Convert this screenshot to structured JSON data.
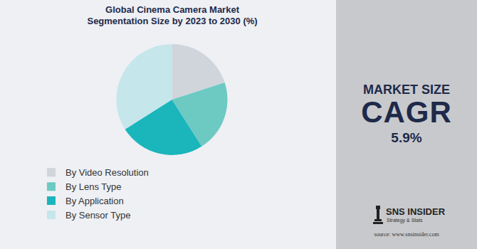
{
  "chart_data": {
    "type": "pie",
    "title": "Global Cinema Camera Market\nSegmentation Size by 2023 to 2030 (%)",
    "categories": [
      "By Video Resolution",
      "By Lens Type",
      "By Application",
      "By Sensor Type"
    ],
    "values": [
      20,
      21,
      25,
      34
    ],
    "colors": [
      "#cfd5db",
      "#6ccac3",
      "#1bb5bc",
      "#c5e6ea"
    ],
    "legend": "bottom",
    "data_labels": false
  },
  "panel": {
    "heading": "MARKET SIZE",
    "metric": "CAGR",
    "value": "5.9%"
  },
  "logo": {
    "name": "SNS INSIDER",
    "tagline": "Strategy & Stats",
    "source": "source: www.snsinsider.com"
  }
}
